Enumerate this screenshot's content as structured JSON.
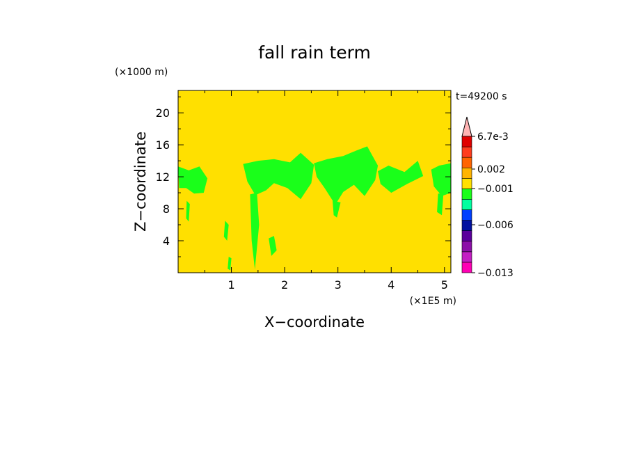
{
  "chart_data": {
    "type": "heatmap",
    "title": "fall rain term",
    "xlabel": "X−coordinate",
    "ylabel": "Z−coordinate",
    "x_unit": "(×1E5 m)",
    "y_unit": "(×1000 m)",
    "time_label": "t=49200 s",
    "xlim": [
      0,
      5.12
    ],
    "ylim": [
      0,
      22.8
    ],
    "x_ticks": [
      1,
      2,
      3,
      4,
      5
    ],
    "x_tick_labels": [
      "1",
      "2",
      "3",
      "4",
      "5"
    ],
    "y_ticks": [
      4,
      8,
      12,
      16,
      20
    ],
    "y_tick_labels": [
      "4",
      "8",
      "12",
      "16",
      "20"
    ],
    "background_level_color": "#ffe000",
    "feature_color": "#1aff1a",
    "colorbar": {
      "colors": [
        "#ff00b4",
        "#c41ec4",
        "#8c0fa8",
        "#5a009c",
        "#0010a0",
        "#0040ff",
        "#00ffa0",
        "#1aff1a",
        "#ffe000",
        "#ffb400",
        "#ff6400",
        "#ff3c1e",
        "#e00000"
      ],
      "extend_color": "#ffb4b4",
      "labels": [
        {
          "value": "6.7e-3",
          "pos": 0
        },
        {
          "value": "0.002",
          "pos": 2
        },
        {
          "value": "−0.001",
          "pos": 3
        },
        {
          "value": "−0.006",
          "pos": 5
        },
        {
          "value": "−0.013",
          "pos": 8
        }
      ]
    },
    "green_regions": [
      {
        "x": [
          0.0,
          0.2,
          0.4,
          0.55,
          0.48,
          0.3,
          0.15,
          0.02
        ],
        "z": [
          13.3,
          12.8,
          13.3,
          11.8,
          10.0,
          9.9,
          10.6,
          10.6
        ]
      },
      {
        "x": [
          1.22,
          1.5,
          1.8,
          2.1,
          2.3,
          2.55,
          2.5,
          2.3,
          2.05,
          1.8,
          1.65,
          1.45,
          1.3
        ],
        "z": [
          13.6,
          14.0,
          14.2,
          13.8,
          15.0,
          13.5,
          11.2,
          9.2,
          10.6,
          11.2,
          10.3,
          9.7,
          11.4
        ]
      },
      {
        "x": [
          2.55,
          2.8,
          3.1,
          3.35,
          3.55,
          3.75,
          3.7,
          3.5,
          3.3,
          3.1,
          2.95,
          2.75,
          2.6
        ],
        "z": [
          13.7,
          14.2,
          14.6,
          15.3,
          15.8,
          13.4,
          11.6,
          9.6,
          11.0,
          10.1,
          8.5,
          10.6,
          12.0
        ]
      },
      {
        "x": [
          3.75,
          3.95,
          4.25,
          4.5,
          4.6,
          4.3,
          4.0,
          3.8
        ],
        "z": [
          12.7,
          13.4,
          12.6,
          14.0,
          12.1,
          11.1,
          10.0,
          11.1
        ]
      },
      {
        "x": [
          4.75,
          4.9,
          5.05,
          5.12,
          5.12,
          4.95,
          4.8
        ],
        "z": [
          12.9,
          13.4,
          13.6,
          13.7,
          10.0,
          9.6,
          10.8
        ]
      },
      {
        "x": [
          1.35,
          1.48,
          1.52,
          1.44,
          1.38
        ],
        "z": [
          9.8,
          10.0,
          6.0,
          0.4,
          4.0
        ]
      },
      {
        "x": [
          1.7,
          1.8,
          1.85,
          1.75
        ],
        "z": [
          4.3,
          4.6,
          2.8,
          2.1
        ]
      },
      {
        "x": [
          0.88,
          0.95,
          0.92,
          0.86
        ],
        "z": [
          6.5,
          6.0,
          4.0,
          4.5
        ]
      },
      {
        "x": [
          0.16,
          0.22,
          0.2,
          0.15
        ],
        "z": [
          9.0,
          8.6,
          6.4,
          6.8
        ]
      },
      {
        "x": [
          2.9,
          3.05,
          2.98,
          2.92
        ],
        "z": [
          9.0,
          8.8,
          6.9,
          7.2
        ]
      },
      {
        "x": [
          4.88,
          4.98,
          4.95,
          4.86
        ],
        "z": [
          9.9,
          9.9,
          7.2,
          7.6
        ]
      },
      {
        "x": [
          0.95,
          1.0,
          0.98,
          0.93
        ],
        "z": [
          2.0,
          1.8,
          0.3,
          0.5
        ]
      }
    ]
  }
}
